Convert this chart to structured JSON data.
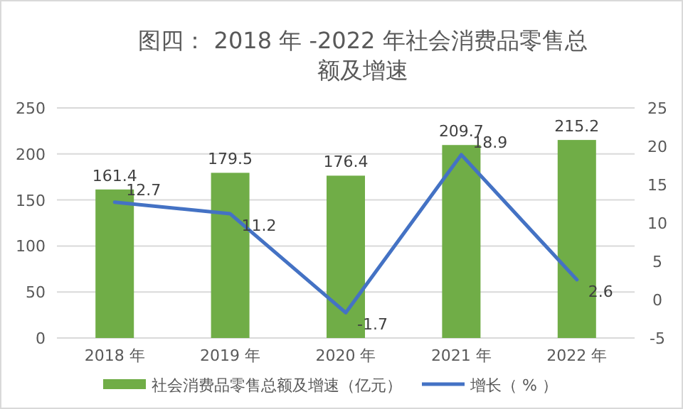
{
  "chart_data": {
    "type": "bar",
    "title": "图四： 2018 年 -2022 年社会消费品零售总额及增速",
    "categories": [
      "2018 年",
      "2019 年",
      "2020 年",
      "2021 年",
      "2022 年"
    ],
    "series": [
      {
        "name": "社会消费品零售总额及增速（亿元）",
        "color": "#70ad47",
        "values": [
          161.4,
          179.5,
          176.4,
          209.7,
          215.2
        ]
      },
      {
        "name": "增长（ % ）",
        "type": "line",
        "axis": "y2",
        "color": "#4472c4",
        "values": [
          12.7,
          11.2,
          -1.7,
          18.9,
          2.6
        ]
      }
    ],
    "ylim": [
      0,
      250
    ],
    "yticks": [
      0,
      50,
      100,
      150,
      200,
      250
    ],
    "y2lim": [
      -5,
      25
    ],
    "y2ticks": [
      -5,
      0,
      5,
      10,
      15,
      20,
      25
    ],
    "grid": "y",
    "legend": "bottom",
    "data_labels": true,
    "marker": "none",
    "line_style": "solid"
  }
}
